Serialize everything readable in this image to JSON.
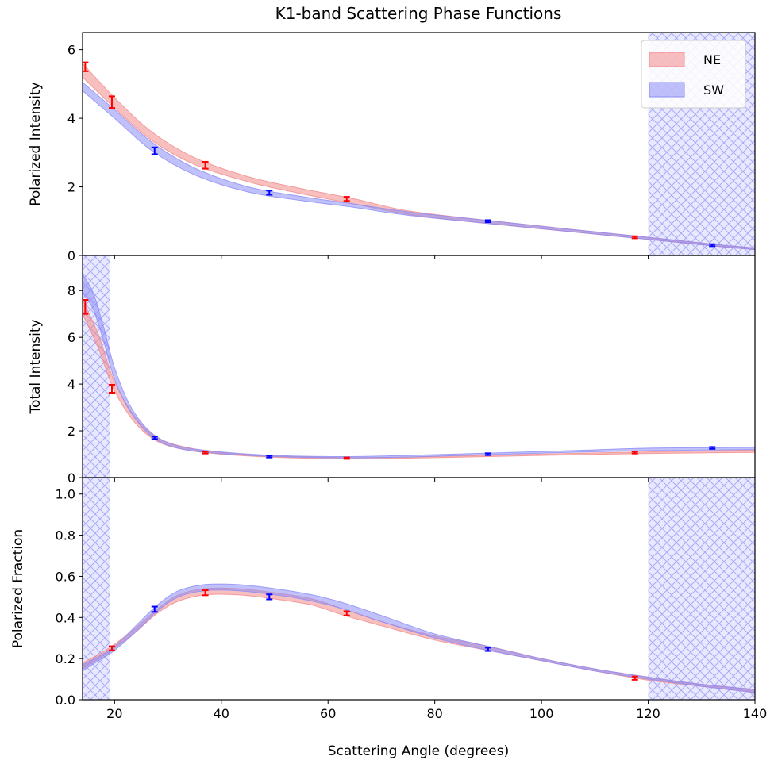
{
  "chart_data": {
    "type": "line",
    "title": "K1-band Scattering Phase Functions",
    "xlabel": "Scattering Angle (degrees)",
    "xlim": [
      14,
      140
    ],
    "xticks": [
      20,
      40,
      60,
      80,
      100,
      120,
      140
    ],
    "grid": false,
    "legend": {
      "placement": "top-right",
      "entries": [
        "NE",
        "SW"
      ]
    },
    "colors": {
      "NE": "#ff0000",
      "SW": "#0000ff",
      "NE_band": "#f28b8b",
      "SW_band": "#8c8cf5",
      "hatch": "#b3b3ff"
    },
    "panels": [
      {
        "ylabel": "Polarized Intensity",
        "ylim": [
          0,
          6.5
        ],
        "yticks": [
          0,
          2,
          4,
          6
        ],
        "excluded_ranges": [
          [
            120,
            140
          ]
        ],
        "series": [
          {
            "name": "NE",
            "band": {
              "x": [
                14,
                20,
                27,
                35,
                45,
                55,
                65,
                75,
                90,
                105,
                120,
                132,
                140
              ],
              "lower": [
                5.2,
                4.3,
                3.35,
                2.65,
                2.15,
                1.8,
                1.5,
                1.2,
                0.93,
                0.7,
                0.47,
                0.28,
                0.17
              ],
              "upper": [
                5.6,
                4.6,
                3.6,
                2.85,
                2.3,
                1.95,
                1.65,
                1.3,
                1.02,
                0.77,
                0.53,
                0.33,
                0.22
              ]
            },
            "points": {
              "x": [
                14.5,
                19.5,
                37,
                63.5,
                117.5
              ],
              "y": [
                5.5,
                4.47,
                2.63,
                1.65,
                0.53
              ],
              "err": [
                0.13,
                0.17,
                0.1,
                0.06,
                0.03
              ]
            }
          },
          {
            "name": "SW",
            "band": {
              "x": [
                14,
                20,
                27,
                35,
                45,
                55,
                65,
                75,
                90,
                105,
                120,
                132,
                140
              ],
              "lower": [
                4.8,
                4.0,
                3.05,
                2.35,
                1.85,
                1.6,
                1.4,
                1.17,
                0.93,
                0.7,
                0.47,
                0.28,
                0.17
              ],
              "upper": [
                5.05,
                4.25,
                3.3,
                2.55,
                2.0,
                1.72,
                1.5,
                1.27,
                1.02,
                0.77,
                0.53,
                0.33,
                0.22
              ]
            },
            "points": {
              "x": [
                27.5,
                49,
                90,
                132
              ],
              "y": [
                3.05,
                1.83,
                1.0,
                0.3
              ],
              "err": [
                0.1,
                0.06,
                0.03,
                0.03
              ]
            }
          }
        ]
      },
      {
        "ylabel": "Total Intensity",
        "ylim": [
          0,
          9.5
        ],
        "yticks": [
          0,
          2,
          4,
          6,
          8
        ],
        "excluded_ranges": [
          [
            14,
            19.2
          ]
        ],
        "series": [
          {
            "name": "NE",
            "band": {
              "x": [
                14,
                17,
                20,
                24,
                28,
                33,
                40,
                50,
                63,
                75,
                90,
                105,
                120,
                140
              ],
              "lower": [
                7.0,
                5.5,
                3.7,
                2.3,
                1.55,
                1.2,
                1.0,
                0.87,
                0.8,
                0.83,
                0.9,
                0.97,
                1.03,
                1.08
              ],
              "upper": [
                7.6,
                6.1,
                4.1,
                2.55,
                1.72,
                1.32,
                1.08,
                0.93,
                0.86,
                0.88,
                0.95,
                1.03,
                1.1,
                1.18
              ]
            },
            "points": {
              "x": [
                14.5,
                19.5,
                37,
                63.5,
                117.5
              ],
              "y": [
                7.3,
                3.8,
                1.07,
                0.83,
                1.07
              ],
              "err": [
                0.3,
                0.17,
                0.04,
                0.03,
                0.04
              ]
            }
          },
          {
            "name": "SW",
            "band": {
              "x": [
                14,
                16,
                18,
                20,
                23,
                27,
                32,
                40,
                50,
                63,
                75,
                90,
                105,
                120,
                132,
                140
              ],
              "lower": [
                7.9,
                7.2,
                5.8,
                4.2,
                2.8,
                1.75,
                1.25,
                1.02,
                0.9,
                0.84,
                0.88,
                0.98,
                1.08,
                1.15,
                1.18,
                1.2
              ],
              "upper": [
                8.7,
                7.9,
                6.4,
                4.7,
                3.05,
                1.9,
                1.35,
                1.1,
                0.95,
                0.9,
                0.95,
                1.05,
                1.15,
                1.26,
                1.28,
                1.3
              ]
            },
            "points": {
              "x": [
                27.5,
                49,
                90,
                132
              ],
              "y": [
                1.7,
                0.9,
                1.0,
                1.27
              ],
              "err": [
                0.05,
                0.04,
                0.04,
                0.04
              ]
            }
          }
        ]
      },
      {
        "ylabel": "Polarized Fraction",
        "ylim": [
          0,
          1.08
        ],
        "yticks": [
          0.0,
          0.2,
          0.4,
          0.6,
          0.8,
          1.0
        ],
        "excluded_ranges": [
          [
            14,
            19.2
          ],
          [
            120,
            140
          ]
        ],
        "series": [
          {
            "name": "NE",
            "band": {
              "x": [
                14,
                17,
                20,
                24,
                28,
                32,
                37,
                43,
                50,
                57,
                63,
                70,
                80,
                90,
                100,
                110,
                120,
                130,
                140
              ],
              "lower": [
                0.15,
                0.2,
                0.25,
                0.33,
                0.42,
                0.48,
                0.51,
                0.51,
                0.49,
                0.46,
                0.41,
                0.36,
                0.29,
                0.24,
                0.19,
                0.14,
                0.095,
                0.065,
                0.035
              ],
              "upper": [
                0.18,
                0.22,
                0.27,
                0.35,
                0.44,
                0.51,
                0.54,
                0.54,
                0.52,
                0.49,
                0.44,
                0.38,
                0.31,
                0.26,
                0.2,
                0.15,
                0.11,
                0.075,
                0.05
              ]
            },
            "points": {
              "x": [
                19.5,
                37,
                63.5,
                117.5
              ],
              "y": [
                0.25,
                0.52,
                0.42,
                0.105
              ],
              "err": [
                0.01,
                0.012,
                0.01,
                0.008
              ]
            }
          },
          {
            "name": "SW",
            "band": {
              "x": [
                14,
                17,
                20,
                24,
                28,
                32,
                37,
                43,
                50,
                57,
                63,
                70,
                80,
                90,
                100,
                110,
                120,
                130,
                140
              ],
              "lower": [
                0.14,
                0.19,
                0.24,
                0.33,
                0.43,
                0.5,
                0.53,
                0.53,
                0.51,
                0.48,
                0.44,
                0.38,
                0.3,
                0.24,
                0.19,
                0.14,
                0.1,
                0.065,
                0.035
              ],
              "upper": [
                0.17,
                0.21,
                0.26,
                0.36,
                0.46,
                0.53,
                0.56,
                0.56,
                0.54,
                0.51,
                0.47,
                0.41,
                0.32,
                0.26,
                0.2,
                0.15,
                0.11,
                0.075,
                0.05
              ]
            },
            "points": {
              "x": [
                27.5,
                49,
                90
              ],
              "y": [
                0.44,
                0.5,
                0.245
              ],
              "err": [
                0.013,
                0.012,
                0.008
              ]
            }
          }
        ]
      }
    ]
  }
}
